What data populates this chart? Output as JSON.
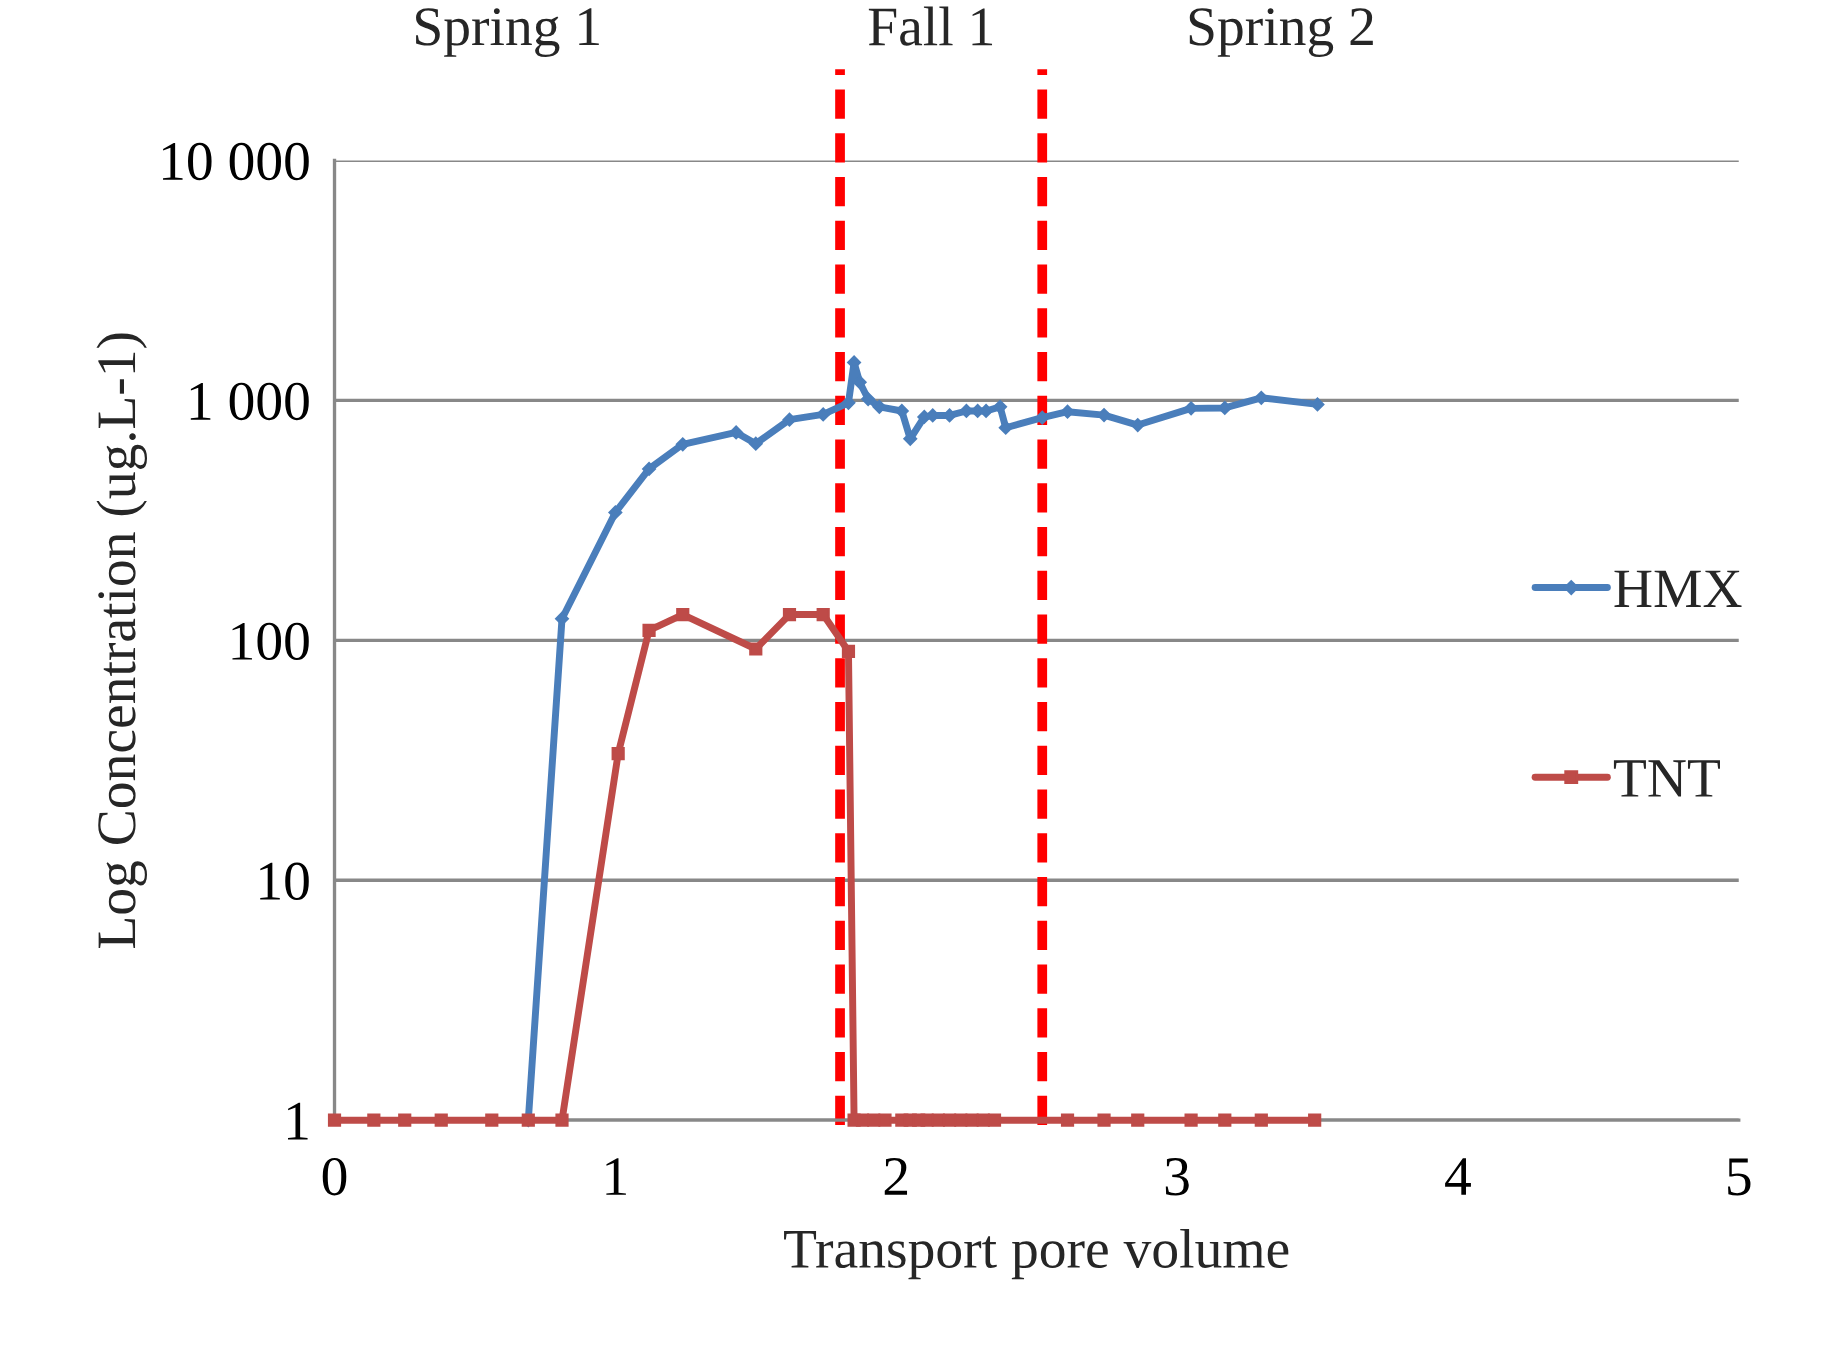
{
  "chart_data": {
    "type": "line",
    "xlabel": "Transport pore volume",
    "ylabel": "Log Concentration (ug.L-1)",
    "log": "y",
    "xlim": [
      0,
      5
    ],
    "xticks": [
      0,
      1,
      2,
      3,
      4,
      5
    ],
    "ylim": [
      1,
      10000
    ],
    "yticks": [
      1,
      10,
      100,
      {
        "value": 1000,
        "label": "1 000"
      },
      {
        "value": 10000,
        "label": "10 000"
      }
    ],
    "grid": "y",
    "legend": "right",
    "line_style": "solid",
    "series": [
      {
        "name": "HMX",
        "color": "#4a7ebb",
        "marker": "diamond",
        "x": [
          0.69,
          0.81,
          1.0,
          1.12,
          1.24,
          1.43,
          1.5,
          1.62,
          1.74,
          1.83,
          1.85,
          1.87,
          1.9,
          1.94,
          2.02,
          2.05,
          2.1,
          2.13,
          2.19,
          2.25,
          2.29,
          2.32,
          2.37,
          2.39,
          2.52,
          2.61,
          2.74,
          2.86,
          3.05,
          3.17,
          3.3,
          3.5
        ],
        "values": [
          1,
          123,
          341,
          518,
          656,
          735,
          660,
          831,
          874,
          977,
          1439,
          1190,
          1013,
          940,
          903,
          691,
          853,
          865,
          865,
          903,
          903,
          903,
          940,
          769,
          847,
          897,
          868,
          789,
          926,
          930,
          1025,
          962
        ]
      },
      {
        "name": "TNT",
        "color": "#be4b48",
        "marker": "square",
        "x": [
          0,
          0.14,
          0.25,
          0.38,
          0.56,
          0.69,
          0.81,
          1.01,
          1.12,
          1.24,
          1.5,
          1.62,
          1.74,
          1.83,
          1.85,
          1.88,
          1.92,
          1.96,
          2.02,
          2.05,
          2.08,
          2.11,
          2.15,
          2.19,
          2.23,
          2.27,
          2.31,
          2.35,
          2.61,
          2.74,
          2.86,
          3.05,
          3.17,
          3.3,
          3.49
        ],
        "values": [
          1,
          1,
          1,
          1,
          1,
          1,
          1,
          33.7,
          110,
          128,
          92,
          128,
          128,
          90,
          1,
          1,
          1,
          1,
          1,
          1,
          1,
          1,
          1,
          1,
          1,
          1,
          1,
          1,
          1,
          1,
          1,
          1,
          1,
          1,
          1
        ]
      }
    ],
    "ref_lines": [
      {
        "axis": "x",
        "value": 1.8,
        "label": null,
        "color": "#ff0000",
        "line_style": "dashed"
      },
      {
        "axis": "x",
        "value": 2.52,
        "label": null,
        "color": "#ff0000",
        "line_style": "dashed"
      }
    ],
    "annotations": [
      "Spring 1",
      "Fall 1",
      "Spring 2"
    ]
  }
}
